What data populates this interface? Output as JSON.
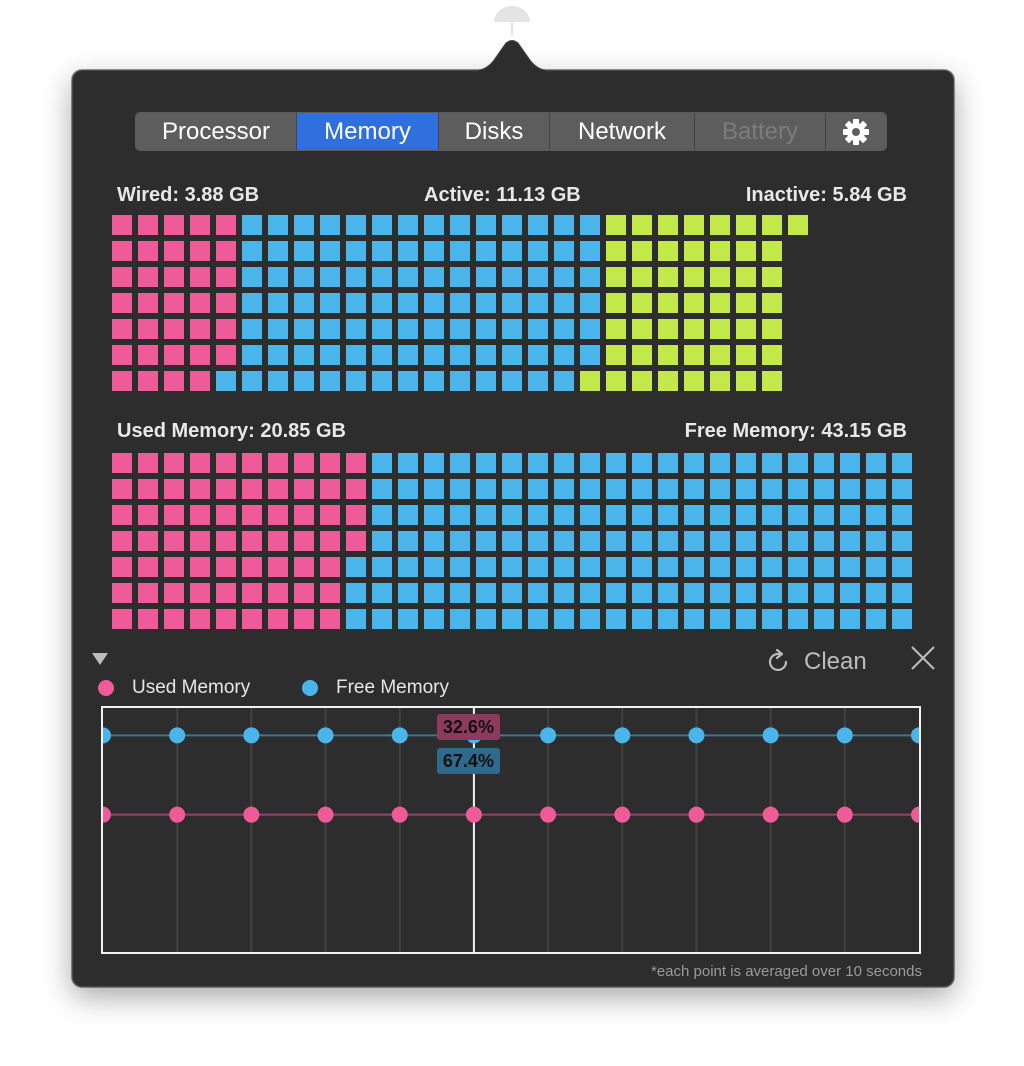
{
  "tabs": [
    {
      "label": "Processor",
      "state": "normal"
    },
    {
      "label": "Memory",
      "state": "active"
    },
    {
      "label": "Disks",
      "state": "normal"
    },
    {
      "label": "Network",
      "state": "normal"
    },
    {
      "label": "Battery",
      "state": "disabled"
    }
  ],
  "settings_icon": "gear-icon",
  "colors": {
    "wired": "#ee5b98",
    "active": "#4ab5ea",
    "inactive": "#c3e84a",
    "used": "#ee5b98",
    "free": "#4ab5ea",
    "tab_active": "#2f6fde"
  },
  "memory_breakdown": {
    "wired_label": "Wired: 3.88 GB",
    "active_label": "Active: 11.13 GB",
    "inactive_label": "Inactive: 5.84 GB",
    "wired_cells": 34,
    "active_cells": 98,
    "inactive_cells": 51,
    "total_cells": 217
  },
  "memory_usage": {
    "used_label": "Used Memory: 20.85 GB",
    "free_label": "Free Memory: 43.15 GB",
    "used_cells": 67,
    "free_cells": 150,
    "total_cells": 217
  },
  "toolbar": {
    "collapse_icon": "triangle-down-icon",
    "clean_icon": "refresh-icon",
    "clean_label": "Clean",
    "close_icon": "close-icon"
  },
  "legend": {
    "used": "Used Memory",
    "free": "Free Memory"
  },
  "chart_data": {
    "type": "line",
    "series": [
      {
        "name": "Used Memory",
        "values": [
          32.6,
          32.6,
          32.6,
          32.6,
          32.6,
          32.6,
          32.6,
          32.6,
          32.6,
          32.6,
          32.6,
          32.6
        ]
      },
      {
        "name": "Free Memory",
        "values": [
          67.4,
          67.4,
          67.4,
          67.4,
          67.4,
          67.4,
          67.4,
          67.4,
          67.4,
          67.4,
          67.4,
          67.4
        ]
      }
    ],
    "ylim": [
      0,
      100
    ],
    "grid": true,
    "hover": {
      "index": 5,
      "used_label": "32.6%",
      "free_label": "67.4%"
    }
  },
  "footnote": "*each point is averaged over 10 seconds"
}
